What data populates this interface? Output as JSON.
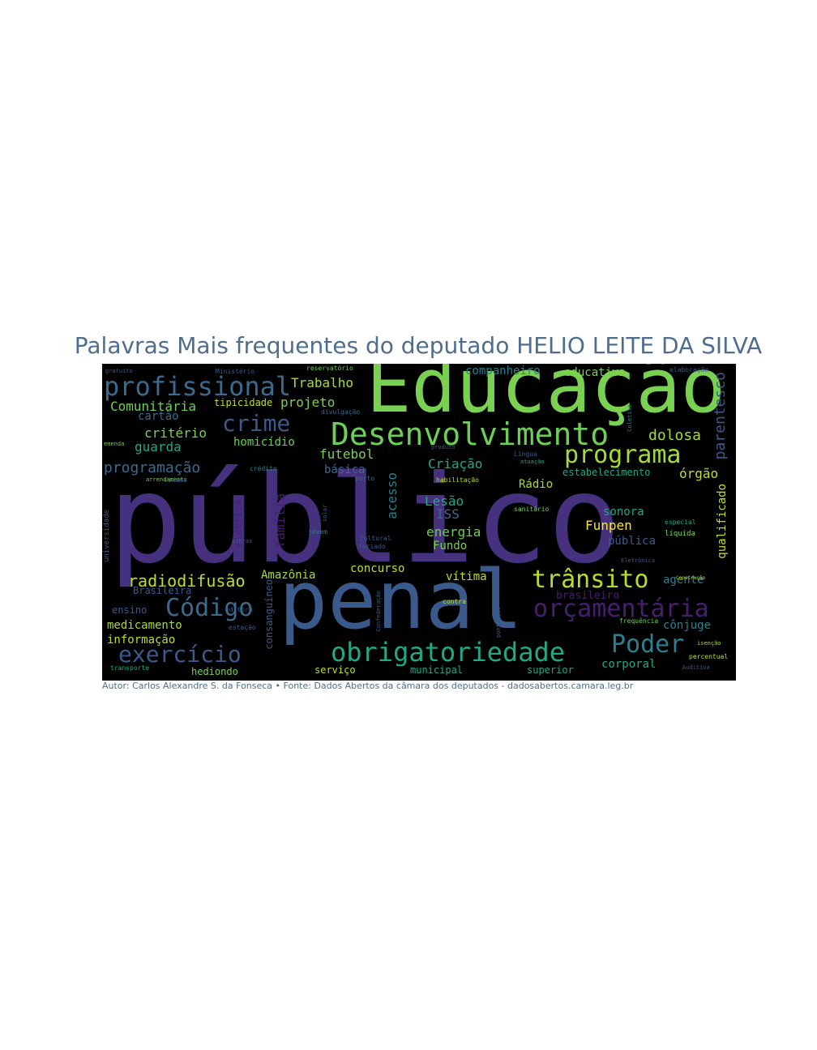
{
  "title": "Palavras Mais frequentes do deputado HELIO LEITE DA SILVA",
  "caption": "Autor: Carlos Alexandre S. da Fonseca • Fonte: Dados Abertos da câmara dos deputados - dadosabertos.camara.leg.br",
  "colors": {
    "background": "#000000",
    "title": "#4f6d8f",
    "palette": [
      "#46317e",
      "#3b5a8c",
      "#2c7f8e",
      "#22a884",
      "#7ad151",
      "#bddf26",
      "#440154"
    ]
  },
  "words": [
    {
      "text": "público",
      "color": "#46317e"
    },
    {
      "text": "penal",
      "color": "#3b5a8c"
    },
    {
      "text": "Educação",
      "color": "#7ad151"
    },
    {
      "text": "Desenvolvimento",
      "color": "#6ece58"
    },
    {
      "text": "obrigatoriedade",
      "color": "#22a884"
    },
    {
      "text": "profissional",
      "color": "#3b6a8c"
    },
    {
      "text": "programa",
      "color": "#a5db36"
    },
    {
      "text": "crime",
      "color": "#3b5a8c"
    },
    {
      "text": "orçamentária",
      "color": "#481f70"
    },
    {
      "text": "trânsito",
      "color": "#b5de2b"
    },
    {
      "text": "Poder",
      "color": "#2c7f8e"
    },
    {
      "text": "Código",
      "color": "#3b6a8c"
    },
    {
      "text": "exercício",
      "color": "#3b5a8c"
    },
    {
      "text": "radiodifusão",
      "color": "#bddf26"
    },
    {
      "text": "programação",
      "color": "#3b6a8c"
    },
    {
      "text": "Comunitária",
      "color": "#6ece58"
    },
    {
      "text": "Trabalho",
      "color": "#a5db36"
    },
    {
      "text": "projeto",
      "color": "#7ad151"
    },
    {
      "text": "cartão",
      "color": "#3b6a8c"
    },
    {
      "text": "critério",
      "color": "#7ad151"
    },
    {
      "text": "homicídio",
      "color": "#6ece58"
    },
    {
      "text": "guarda",
      "color": "#22a884"
    },
    {
      "text": "tipicidade",
      "color": "#bddf26"
    },
    {
      "text": "companheiro",
      "color": "#2c7f8e"
    },
    {
      "text": "educativa",
      "color": "#7ad151"
    },
    {
      "text": "dolosa",
      "color": "#a5db36"
    },
    {
      "text": "parentesco",
      "color": "#3b5a8c"
    },
    {
      "text": "órgão",
      "color": "#bddf26"
    },
    {
      "text": "estabelecimento",
      "color": "#22a884"
    },
    {
      "text": "futebol",
      "color": "#7ad151"
    },
    {
      "text": "básica",
      "color": "#3b6a8c"
    },
    {
      "text": "Criação",
      "color": "#22a884"
    },
    {
      "text": "Rádio",
      "color": "#a5db36"
    },
    {
      "text": "Lesão",
      "color": "#22a884"
    },
    {
      "text": "ISS",
      "color": "#3b6a8c"
    },
    {
      "text": "acesso",
      "color": "#2c7f8e"
    },
    {
      "text": "energia",
      "color": "#6ece58"
    },
    {
      "text": "Fundo",
      "color": "#7ad151"
    },
    {
      "text": "sonora",
      "color": "#22a884"
    },
    {
      "text": "Funpen",
      "color": "#fde725"
    },
    {
      "text": "pública",
      "color": "#3b5a8c"
    },
    {
      "text": "qualificado",
      "color": "#bddf26"
    },
    {
      "text": "família",
      "color": "#481f70"
    },
    {
      "text": "elétrica",
      "color": "#481f70"
    },
    {
      "text": "Amazônia",
      "color": "#a5db36"
    },
    {
      "text": "concurso",
      "color": "#bddf26"
    },
    {
      "text": "vítima",
      "color": "#bddf26"
    },
    {
      "text": "agente",
      "color": "#2c7f8e"
    },
    {
      "text": "Brasileira",
      "color": "#3b5a8c"
    },
    {
      "text": "brasileiro",
      "color": "#481f70"
    },
    {
      "text": "ensino",
      "color": "#3b5a8c"
    },
    {
      "text": "medicamento",
      "color": "#a5db36"
    },
    {
      "text": "informação",
      "color": "#bddf26"
    },
    {
      "text": "cônjuge",
      "color": "#2c7f8e"
    },
    {
      "text": "consanguíneo",
      "color": "#3b5a8c"
    },
    {
      "text": "corporal",
      "color": "#22a884"
    },
    {
      "text": "hediondo",
      "color": "#7ad151"
    },
    {
      "text": "serviço",
      "color": "#bddf26"
    },
    {
      "text": "municipal",
      "color": "#22a884"
    },
    {
      "text": "superior",
      "color": "#22a884"
    },
    {
      "text": "frequência",
      "color": "#6ece58"
    },
    {
      "text": "isenção",
      "color": "#a5db36"
    },
    {
      "text": "percentual",
      "color": "#bddf26"
    },
    {
      "text": "líquida",
      "color": "#7ad151"
    },
    {
      "text": "jovem",
      "color": "#2c7f8e"
    },
    {
      "text": "cultural",
      "color": "#3b5a8c"
    },
    {
      "text": "porto",
      "color": "#3b6a8c"
    },
    {
      "text": "universidade",
      "color": "#3b5a8c"
    },
    {
      "text": "reservatório",
      "color": "#6ece58"
    },
    {
      "text": "transporte",
      "color": "#22a884"
    },
    {
      "text": "contra",
      "color": "#bddf26"
    },
    {
      "text": "arrendamento",
      "color": "#7ad151"
    },
    {
      "text": "especial",
      "color": "#22a884"
    },
    {
      "text": "divulgação",
      "color": "#3b6a8c"
    },
    {
      "text": "Língua",
      "color": "#3b5a8c"
    },
    {
      "text": "atuação",
      "color": "#22a884"
    },
    {
      "text": "elaboração",
      "color": "#3b5a8c"
    },
    {
      "text": "sanitário",
      "color": "#7ad151"
    },
    {
      "text": "feriado",
      "color": "#3b5a8c"
    },
    {
      "text": "crédito",
      "color": "#2c7f8e"
    },
    {
      "text": "cidade",
      "color": "#3b5a8c"
    },
    {
      "text": "emenda",
      "color": "#6ece58"
    },
    {
      "text": "gratuito",
      "color": "#3b5a8c"
    },
    {
      "text": "editora",
      "color": "#3b5a8c"
    },
    {
      "text": "estação",
      "color": "#3b5a8c"
    },
    {
      "text": "habilitação",
      "color": "#bddf26"
    },
    {
      "text": "pontuação",
      "color": "#3b5a8c"
    },
    {
      "text": "Confederação",
      "color": "#3b5a8c"
    },
    {
      "text": "produto",
      "color": "#3b5a8c"
    },
    {
      "text": "solar",
      "color": "#3b5a8c"
    },
    {
      "text": "Libras",
      "color": "#3b5a8c"
    },
    {
      "text": "Eletrônica",
      "color": "#3b5a8c"
    },
    {
      "text": "Auditiva",
      "color": "#3b5a8c"
    },
    {
      "text": "Ministério",
      "color": "#3b5a8c"
    },
    {
      "text": "Coletivo",
      "color": "#2c7f8e"
    },
    {
      "text": "Construção",
      "color": "#bddf26"
    }
  ]
}
